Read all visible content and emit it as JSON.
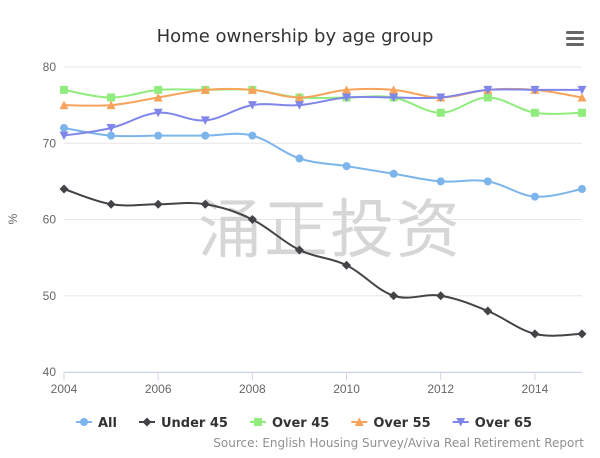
{
  "watermark_text": "涌正投资",
  "chart_data": {
    "type": "line",
    "title": "Home ownership by age group",
    "xlabel": "",
    "ylabel": "%",
    "x": [
      2004,
      2005,
      2006,
      2007,
      2008,
      2009,
      2010,
      2011,
      2012,
      2013,
      2014,
      2015
    ],
    "xticks": [
      2004,
      2006,
      2008,
      2010,
      2012,
      2014
    ],
    "yticks": [
      40,
      50,
      60,
      70,
      80
    ],
    "xlim": [
      2004,
      2015
    ],
    "ylim": [
      40,
      80
    ],
    "grid": "horizontal",
    "legend": "bottom",
    "credit": "Source: English Housing Survey/Aviva Real Retirement Report",
    "series": [
      {
        "name": "All",
        "color": "#7cb5ec",
        "marker": "circle",
        "values": [
          72,
          71,
          71,
          71,
          71,
          68,
          67,
          66,
          65,
          65,
          63,
          64
        ]
      },
      {
        "name": "Under 45",
        "color": "#434348",
        "marker": "diamond",
        "values": [
          64,
          62,
          62,
          62,
          60,
          56,
          54,
          50,
          50,
          48,
          45,
          45
        ]
      },
      {
        "name": "Over 45",
        "color": "#90ed7d",
        "marker": "square",
        "values": [
          77,
          76,
          77,
          77,
          77,
          76,
          76,
          76,
          74,
          76,
          74,
          74
        ]
      },
      {
        "name": "Over 55",
        "color": "#f7a35c",
        "marker": "triangle",
        "values": [
          75,
          75,
          76,
          77,
          77,
          76,
          77,
          77,
          76,
          77,
          77,
          76
        ]
      },
      {
        "name": "Over 65",
        "color": "#8085e9",
        "marker": "triangle-down",
        "values": [
          71,
          72,
          74,
          73,
          75,
          75,
          76,
          76,
          76,
          77,
          77,
          77
        ]
      }
    ]
  }
}
